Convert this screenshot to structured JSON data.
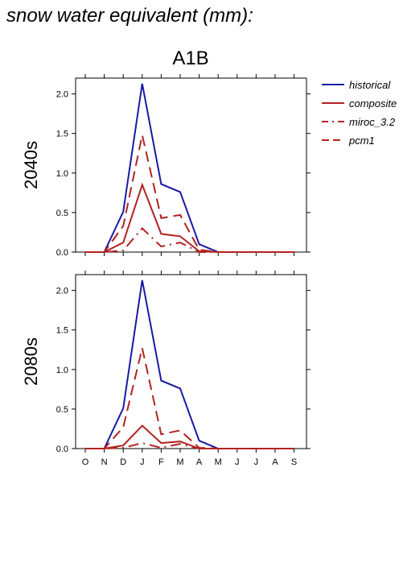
{
  "figure_title": "snow water equivalent (mm):",
  "scenario_title": "A1B",
  "colors": {
    "historical": "#1a1aa6",
    "composite": "#b22222",
    "miroc_3.2": "#b22222",
    "pcm1": "#b22222",
    "axis": "#000000"
  },
  "legend": [
    {
      "name": "historical",
      "label": "historical",
      "dash": "solid"
    },
    {
      "name": "composite",
      "label": "composite",
      "dash": "solid"
    },
    {
      "name": "miroc_3.2",
      "label": "miroc_3.2",
      "dash": "dashdot"
    },
    {
      "name": "pcm1",
      "label": "pcm1",
      "dash": "dashed"
    }
  ],
  "chart_data": [
    {
      "type": "line",
      "ylabel": "2040s",
      "categories": [
        "O",
        "N",
        "D",
        "J",
        "F",
        "M",
        "A",
        "M",
        "J",
        "J",
        "A",
        "S"
      ],
      "show_xtick_labels": false,
      "ylim": [
        0,
        2.2
      ],
      "yticks": [
        "0.0",
        "0.5",
        "1.0",
        "1.5",
        "2.0"
      ],
      "series": [
        {
          "name": "historical",
          "values": [
            0,
            0,
            0.51,
            2.13,
            0.86,
            0.76,
            0.1,
            0,
            0,
            0,
            0,
            0
          ]
        },
        {
          "name": "composite",
          "values": [
            0,
            0,
            0.12,
            0.85,
            0.23,
            0.2,
            0.01,
            0,
            0,
            0,
            0,
            0
          ]
        },
        {
          "name": "miroc_3.2",
          "values": [
            0,
            0,
            0.02,
            0.3,
            0.07,
            0.12,
            0,
            0,
            0,
            0,
            0,
            0
          ]
        },
        {
          "name": "pcm1",
          "values": [
            0,
            0,
            0.33,
            1.48,
            0.43,
            0.47,
            0.03,
            0,
            0,
            0,
            0,
            0
          ]
        }
      ]
    },
    {
      "type": "line",
      "ylabel": "2080s",
      "categories": [
        "O",
        "N",
        "D",
        "J",
        "F",
        "M",
        "A",
        "M",
        "J",
        "J",
        "A",
        "S"
      ],
      "show_xtick_labels": true,
      "ylim": [
        0,
        2.2
      ],
      "yticks": [
        "0.0",
        "0.5",
        "1.0",
        "1.5",
        "2.0"
      ],
      "series": [
        {
          "name": "historical",
          "values": [
            0,
            0,
            0.51,
            2.13,
            0.86,
            0.76,
            0.1,
            0,
            0,
            0,
            0,
            0
          ]
        },
        {
          "name": "composite",
          "values": [
            0,
            0,
            0.04,
            0.29,
            0.07,
            0.09,
            0,
            0,
            0,
            0,
            0,
            0
          ]
        },
        {
          "name": "miroc_3.2",
          "values": [
            0,
            0,
            0.01,
            0.07,
            0.01,
            0.06,
            0,
            0,
            0,
            0,
            0,
            0
          ]
        },
        {
          "name": "pcm1",
          "values": [
            0,
            0,
            0.27,
            1.27,
            0.18,
            0.23,
            0.01,
            0,
            0,
            0,
            0,
            0
          ]
        }
      ]
    }
  ]
}
